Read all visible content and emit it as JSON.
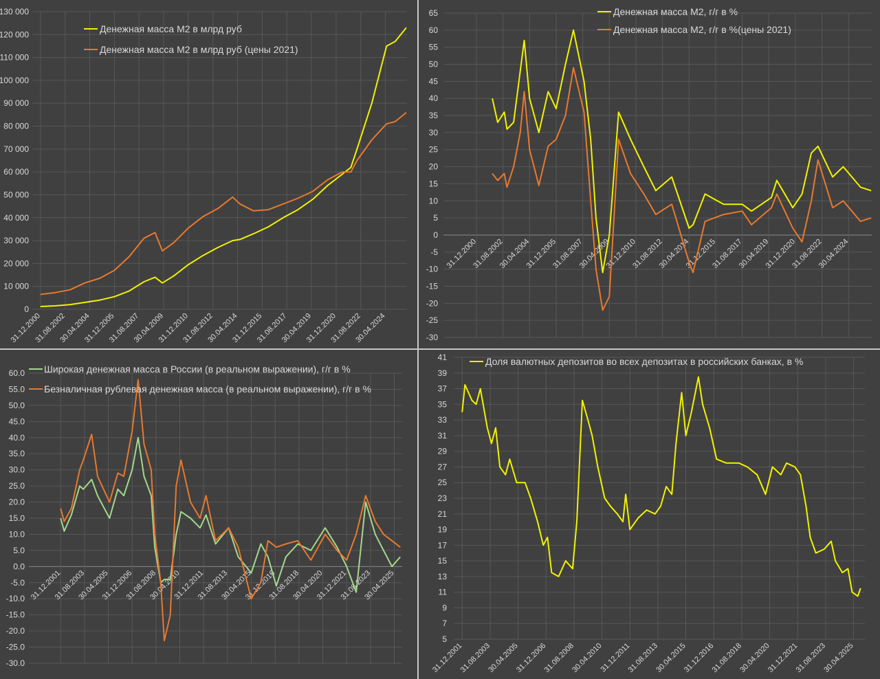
{
  "chart_data": [
    {
      "type": "line",
      "title": "",
      "ylim": [
        0,
        130000
      ],
      "ystep": 10000,
      "yformat": "thousands-space",
      "grid": true,
      "legend_placement": "top-left",
      "x_ticks": [
        "31.12.2000",
        "31.08.2002",
        "30.04.2004",
        "31.12.2005",
        "31.08.2007",
        "30.04.2009",
        "31.12.2010",
        "31.08.2012",
        "30.04.2014",
        "31.12.2015",
        "31.08.2017",
        "30.04.2019",
        "31.12.2020",
        "31.08.2022",
        "30.04.2024"
      ],
      "x": [
        "2001-01",
        "2002-01",
        "2003-01",
        "2004-01",
        "2005-01",
        "2006-01",
        "2007-01",
        "2008-01",
        "2008-10",
        "2009-04",
        "2010-01",
        "2011-01",
        "2012-01",
        "2013-01",
        "2014-01",
        "2014-07",
        "2015-06",
        "2016-06",
        "2017-06",
        "2018-06",
        "2019-06",
        "2020-06",
        "2021-06",
        "2022-01",
        "2022-06",
        "2023-06",
        "2024-06",
        "2025-01",
        "2025-10"
      ],
      "series": [
        {
          "name": "Денежная масса М2 в млрд руб",
          "color": "#f2f200",
          "values": [
            1200,
            1500,
            2000,
            3000,
            4000,
            5500,
            8000,
            12000,
            14000,
            11500,
            14500,
            19500,
            23500,
            27000,
            30000,
            30500,
            33000,
            36000,
            40000,
            43500,
            48000,
            54000,
            59000,
            62000,
            70000,
            90000,
            115000,
            117000,
            123000
          ]
        },
        {
          "name": "Денежная масса М2 в млрд руб (цены 2021)",
          "color": "#e8792e",
          "values": [
            6500,
            7300,
            8500,
            11500,
            13500,
            17000,
            23000,
            31000,
            33500,
            25500,
            29000,
            35500,
            40500,
            44000,
            49000,
            46000,
            43000,
            43500,
            46000,
            48500,
            51500,
            56500,
            60000,
            60000,
            65000,
            74000,
            81000,
            82000,
            86000
          ]
        }
      ]
    },
    {
      "type": "line",
      "title": "",
      "ylim": [
        -30,
        65
      ],
      "ystep": 5,
      "yformat": "integer",
      "grid": true,
      "legend_placement": "top-right",
      "x_ticks": [
        "31.12.2000",
        "31.08.2002",
        "30.04.2004",
        "31.12.2005",
        "31.08.2007",
        "30.04.2009",
        "31.12.2010",
        "31.08.2012",
        "30.04.2014",
        "31.12.2015",
        "31.08.2017",
        "30.04.2019",
        "31.12.2020",
        "31.08.2022",
        "30.04.2024"
      ],
      "x": [
        "2002-01",
        "2002-05",
        "2002-10",
        "2002-12",
        "2003-05",
        "2003-10",
        "2004-01",
        "2004-05",
        "2004-12",
        "2005-07",
        "2006-01",
        "2006-08",
        "2007-02",
        "2007-10",
        "2008-03",
        "2008-07",
        "2008-12",
        "2009-05",
        "2009-12",
        "2010-09",
        "2011-07",
        "2012-04",
        "2013-04",
        "2014-05",
        "2014-08",
        "2015-05",
        "2016-07",
        "2017-09",
        "2018-04",
        "2019-07",
        "2019-11",
        "2020-11",
        "2021-06",
        "2022-01",
        "2022-06",
        "2023-05",
        "2024-01",
        "2025-02",
        "2025-10"
      ],
      "series": [
        {
          "name": "Денежная масса М2, г/г в %",
          "color": "#f2f200",
          "values": [
            40,
            33,
            36,
            31,
            33,
            48,
            57,
            40,
            30,
            42,
            37,
            50,
            60,
            45,
            28,
            5,
            -11,
            0,
            36,
            28,
            20,
            13,
            17,
            2,
            3,
            12,
            9,
            9,
            7,
            11,
            16,
            8,
            12,
            24,
            26,
            17,
            20,
            14,
            13
          ]
        },
        {
          "name": "Денежная масса М2, г/г в %(цены 2021)",
          "color": "#e8792e",
          "values": [
            18,
            16,
            18,
            14,
            20,
            30,
            42,
            25,
            14.5,
            26,
            28,
            35,
            49,
            36,
            10,
            -10,
            -22,
            -18,
            28,
            18,
            12,
            6,
            9,
            -8,
            -11,
            4,
            6,
            7,
            3,
            8,
            12,
            2,
            -2,
            10,
            22,
            8,
            10,
            4,
            5
          ]
        }
      ]
    },
    {
      "type": "line",
      "title": "",
      "ylim": [
        -30,
        60
      ],
      "ystep": 5,
      "yformat": "one-decimal",
      "grid": true,
      "legend_placement": "top-left",
      "x_ticks": [
        "31.12.2001",
        "31.08.2003",
        "30.04.2005",
        "31.12.2006",
        "31.08.2008",
        "30.04.2010",
        "31.12.2011",
        "31.08.2013",
        "30.04.2015",
        "31.12.2016",
        "31.08.2018",
        "30.04.2020",
        "31.12.2021",
        "31.08.2023",
        "30.04.2025"
      ],
      "x": [
        "2002-01",
        "2002-04",
        "2002-10",
        "2003-05",
        "2003-08",
        "2004-03",
        "2004-08",
        "2005-06",
        "2006-01",
        "2006-06",
        "2007-01",
        "2007-06",
        "2007-11",
        "2008-05",
        "2008-08",
        "2009-01",
        "2009-04",
        "2009-09",
        "2010-02",
        "2010-06",
        "2011-02",
        "2011-10",
        "2012-03",
        "2012-11",
        "2013-10",
        "2014-06",
        "2015-05",
        "2016-01",
        "2016-07",
        "2017-02",
        "2017-10",
        "2018-08",
        "2019-07",
        "2020-07",
        "2021-05",
        "2022-01",
        "2022-09",
        "2023-05",
        "2024-01",
        "2024-08",
        "2025-03",
        "2025-10"
      ],
      "series": [
        {
          "name": "Широкая денежная масса в России (в реальном выражении), г/г в %",
          "color": "#a3d98c",
          "values": [
            15,
            11,
            16,
            25,
            24,
            27,
            22,
            15,
            24,
            22,
            30,
            40,
            28,
            22,
            6,
            -5,
            -4,
            -4,
            10,
            17,
            15,
            12,
            16,
            7,
            12,
            3,
            -2,
            7,
            3,
            -6,
            3,
            7,
            5,
            12,
            6,
            0,
            -8,
            20,
            10,
            5,
            0,
            3
          ]
        },
        {
          "name": "Безналичная рублевая денежная масса (в реальном выражении), г/г в %",
          "color": "#e8792e",
          "values": [
            18,
            14,
            18,
            30,
            33,
            41,
            28,
            20,
            29,
            28,
            42,
            58,
            38,
            30,
            10,
            -5,
            -23,
            -15,
            25,
            33,
            20,
            15,
            22,
            8,
            12,
            6,
            -10,
            -5,
            8,
            6,
            7,
            8,
            2,
            10,
            5,
            2,
            10,
            22,
            14,
            10,
            8,
            6
          ]
        }
      ]
    },
    {
      "type": "line",
      "title": "",
      "ylim": [
        5,
        41
      ],
      "ystep": 2,
      "yformat": "integer",
      "grid": true,
      "legend_placement": "top-left",
      "x_ticks": [
        "31.12.2001",
        "31.08.2003",
        "30.04.2005",
        "31.12.2006",
        "31.08.2008",
        "30.04.2010",
        "31.12.2011",
        "31.08.2013",
        "30.04.2015",
        "31.12.2016",
        "31.08.2018",
        "30.04.2020",
        "31.12.2021",
        "31.08.2023",
        "30.04.2025"
      ],
      "x": [
        "2002-01",
        "2002-03",
        "2002-08",
        "2002-11",
        "2003-02",
        "2003-07",
        "2003-10",
        "2004-01",
        "2004-04",
        "2004-08",
        "2004-11",
        "2005-04",
        "2005-10",
        "2006-02",
        "2006-07",
        "2006-11",
        "2007-02",
        "2007-05",
        "2007-10",
        "2008-03",
        "2008-08",
        "2008-11",
        "2009-03",
        "2009-07",
        "2009-10",
        "2010-02",
        "2010-07",
        "2010-11",
        "2011-04",
        "2011-08",
        "2011-10",
        "2012-01",
        "2012-07",
        "2013-01",
        "2013-07",
        "2013-11",
        "2014-03",
        "2014-07",
        "2014-10",
        "2015-02",
        "2015-05",
        "2015-09",
        "2016-02",
        "2016-05",
        "2016-10",
        "2017-03",
        "2017-10",
        "2018-07",
        "2019-01",
        "2019-08",
        "2020-02",
        "2020-07",
        "2021-01",
        "2021-05",
        "2021-11",
        "2022-03",
        "2022-07",
        "2022-10",
        "2023-02",
        "2023-08",
        "2024-01",
        "2024-04",
        "2024-09",
        "2025-01",
        "2025-04",
        "2025-08",
        "2025-10"
      ],
      "series": [
        {
          "name": "Доля валютных депозитов во всех депозитах в российских банках,  в %",
          "color": "#f2f200",
          "values": [
            34,
            37.5,
            35.5,
            35,
            37,
            32,
            30,
            32,
            27,
            26,
            28,
            25,
            25,
            23,
            20,
            17,
            18,
            13.5,
            13,
            15,
            14,
            20,
            35.5,
            33,
            31,
            27,
            23,
            22,
            21,
            20,
            23.5,
            19,
            20.5,
            21.5,
            21,
            22,
            24.5,
            23.5,
            30,
            36.5,
            31,
            34,
            38.5,
            35,
            32,
            28,
            27.5,
            27.5,
            27,
            26,
            23.5,
            27,
            26,
            27.5,
            27,
            26,
            22,
            18,
            16,
            16.5,
            17.5,
            15,
            13.5,
            14,
            11,
            10.5,
            11.5
          ]
        }
      ]
    }
  ]
}
